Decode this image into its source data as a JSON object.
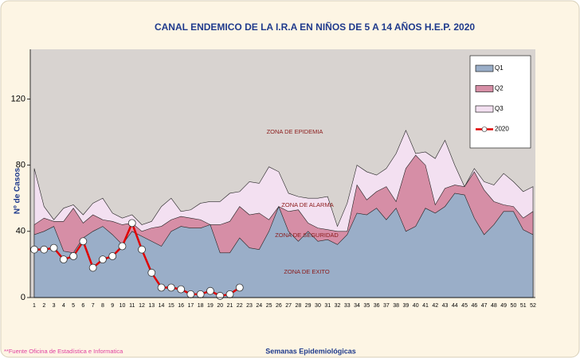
{
  "chart_data": {
    "type": "area",
    "title": "CANAL ENDEMICO DE LA I.R.A EN NIÑOS DE 5 A 14 AÑOS H.E.P. 2020",
    "y_label": "Nº de Casos",
    "x_label": "Semanas Epidemiológicas",
    "footnote": "**Fuente Oficina de Estadística e Informatica",
    "annotations": [
      "ZONA DE EPIDEMIA",
      "ZONA DE ALARMA",
      "ZONA DE SEGURIDAD",
      "ZONA DE EXITO"
    ],
    "categories": [
      "1",
      "2",
      "3",
      "4",
      "5",
      "6",
      "7",
      "8",
      "9",
      "10",
      "11",
      "12",
      "13",
      "14",
      "15",
      "16",
      "17",
      "18",
      "19",
      "20",
      "21",
      "22",
      "23",
      "24",
      "25",
      "26",
      "27",
      "28",
      "29",
      "30",
      "31",
      "32",
      "33",
      "34",
      "35",
      "36",
      "37",
      "38",
      "39",
      "40",
      "41",
      "42",
      "43",
      "44",
      "45",
      "46",
      "47",
      "48",
      "49",
      "50",
      "51",
      "52"
    ],
    "ylim": [
      0,
      150
    ],
    "yticks": [
      0,
      40,
      80,
      120
    ],
    "background_color": "#d8d3d0",
    "legend": "upper right",
    "series": [
      {
        "name": "Q3",
        "kind": "area",
        "color": "#f3e0f1",
        "values": [
          78,
          55,
          47,
          54,
          56,
          50,
          57,
          60,
          51,
          48,
          50,
          44,
          46,
          55,
          60,
          52,
          53,
          57,
          58,
          58,
          63,
          64,
          70,
          69,
          79,
          76,
          63,
          61,
          60,
          60,
          61,
          43,
          57,
          80,
          76,
          74,
          78,
          87,
          101,
          87,
          88,
          84,
          95,
          80,
          67,
          78,
          70,
          68,
          75,
          70,
          64,
          67
        ]
      },
      {
        "name": "Q2",
        "kind": "area",
        "color": "#d68ea6",
        "values": [
          44,
          48,
          46,
          46,
          54,
          45,
          50,
          47,
          46,
          44,
          45,
          40,
          42,
          43,
          47,
          49,
          48,
          47,
          44,
          44,
          46,
          55,
          50,
          51,
          47,
          55,
          52,
          53,
          45,
          42,
          41,
          40,
          40,
          68,
          59,
          64,
          67,
          58,
          78,
          86,
          80,
          56,
          66,
          68,
          67,
          76,
          65,
          58,
          56,
          55,
          48,
          52
        ]
      },
      {
        "name": "Q1",
        "kind": "area",
        "color": "#9aaec8",
        "values": [
          38,
          40,
          43,
          28,
          27,
          36,
          40,
          43,
          38,
          32,
          40,
          37,
          34,
          31,
          40,
          43,
          42,
          42,
          44,
          27,
          27,
          36,
          30,
          29,
          40,
          55,
          40,
          34,
          40,
          34,
          35,
          32,
          38,
          51,
          50,
          54,
          47,
          54,
          40,
          43,
          54,
          51,
          55,
          63,
          62,
          48,
          38,
          44,
          52,
          52,
          41,
          38
        ]
      },
      {
        "name": "2020",
        "kind": "line",
        "color": "#e00000",
        "values": [
          29,
          29,
          30,
          23,
          25,
          34,
          18,
          23,
          25,
          31,
          45,
          29,
          15,
          6,
          6,
          5,
          2,
          2,
          4,
          1,
          2,
          6,
          null,
          null,
          null,
          null,
          null,
          null,
          null,
          null,
          null,
          null,
          null,
          null,
          null,
          null,
          null,
          null,
          null,
          null,
          null,
          null,
          null,
          null,
          null,
          null,
          null,
          null,
          null,
          null,
          null,
          null
        ]
      }
    ]
  }
}
